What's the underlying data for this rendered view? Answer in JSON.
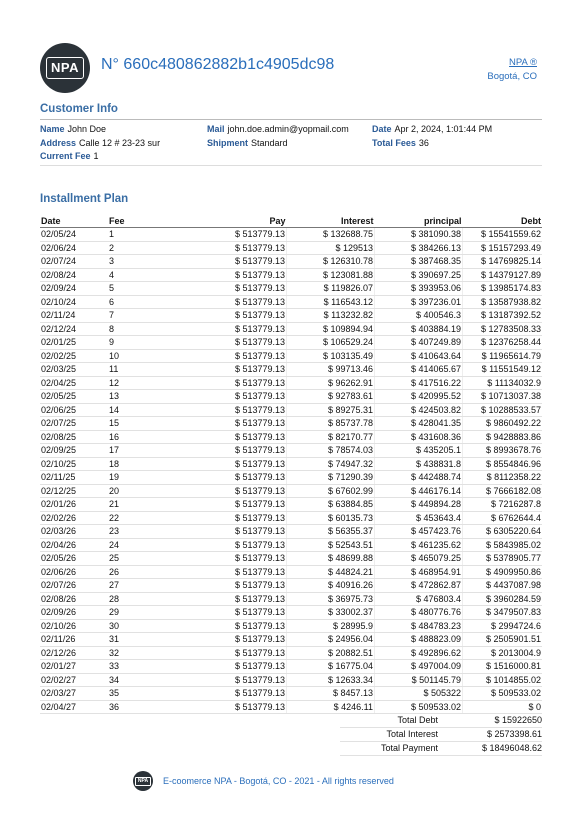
{
  "header": {
    "logo_text": "NPA",
    "order_number": "N° 660c480862882b1c4905dc98",
    "company_link": "NPA ®",
    "company_city": "Bogotá, CO"
  },
  "customer_info": {
    "title": "Customer Info",
    "name_label": "Name",
    "name": "John Doe",
    "address_label": "Address",
    "address": "Calle 12 # 23-23 sur",
    "current_fee_label": "Current Fee",
    "current_fee": "1",
    "mail_label": "Mail",
    "mail": "john.doe.admin@yopmail.com",
    "shipment_label": "Shipment",
    "shipment": "Standard",
    "date_label": "Date",
    "date": "Apr 2, 2024, 1:01:44 PM",
    "total_fees_label": "Total Fees",
    "total_fees": "36"
  },
  "installment_plan": {
    "title": "Installment Plan",
    "columns": [
      "Date",
      "Fee",
      "Pay",
      "Interest",
      "principal",
      "Debt"
    ],
    "rows": [
      [
        "02/05/24",
        "1",
        "$ 513779.13",
        "$ 132688.75",
        "$ 381090.38",
        "$ 15541559.62"
      ],
      [
        "02/06/24",
        "2",
        "$ 513779.13",
        "$ 129513",
        "$ 384266.13",
        "$ 15157293.49"
      ],
      [
        "02/07/24",
        "3",
        "$ 513779.13",
        "$ 126310.78",
        "$ 387468.35",
        "$ 14769825.14"
      ],
      [
        "02/08/24",
        "4",
        "$ 513779.13",
        "$ 123081.88",
        "$ 390697.25",
        "$ 14379127.89"
      ],
      [
        "02/09/24",
        "5",
        "$ 513779.13",
        "$ 119826.07",
        "$ 393953.06",
        "$ 13985174.83"
      ],
      [
        "02/10/24",
        "6",
        "$ 513779.13",
        "$ 116543.12",
        "$ 397236.01",
        "$ 13587938.82"
      ],
      [
        "02/11/24",
        "7",
        "$ 513779.13",
        "$ 113232.82",
        "$ 400546.3",
        "$ 13187392.52"
      ],
      [
        "02/12/24",
        "8",
        "$ 513779.13",
        "$ 109894.94",
        "$ 403884.19",
        "$ 12783508.33"
      ],
      [
        "02/01/25",
        "9",
        "$ 513779.13",
        "$ 106529.24",
        "$ 407249.89",
        "$ 12376258.44"
      ],
      [
        "02/02/25",
        "10",
        "$ 513779.13",
        "$ 103135.49",
        "$ 410643.64",
        "$ 11965614.79"
      ],
      [
        "02/03/25",
        "11",
        "$ 513779.13",
        "$ 99713.46",
        "$ 414065.67",
        "$ 11551549.12"
      ],
      [
        "02/04/25",
        "12",
        "$ 513779.13",
        "$ 96262.91",
        "$ 417516.22",
        "$ 11134032.9"
      ],
      [
        "02/05/25",
        "13",
        "$ 513779.13",
        "$ 92783.61",
        "$ 420995.52",
        "$ 10713037.38"
      ],
      [
        "02/06/25",
        "14",
        "$ 513779.13",
        "$ 89275.31",
        "$ 424503.82",
        "$ 10288533.57"
      ],
      [
        "02/07/25",
        "15",
        "$ 513779.13",
        "$ 85737.78",
        "$ 428041.35",
        "$ 9860492.22"
      ],
      [
        "02/08/25",
        "16",
        "$ 513779.13",
        "$ 82170.77",
        "$ 431608.36",
        "$ 9428883.86"
      ],
      [
        "02/09/25",
        "17",
        "$ 513779.13",
        "$ 78574.03",
        "$ 435205.1",
        "$ 8993678.76"
      ],
      [
        "02/10/25",
        "18",
        "$ 513779.13",
        "$ 74947.32",
        "$ 438831.8",
        "$ 8554846.96"
      ],
      [
        "02/11/25",
        "19",
        "$ 513779.13",
        "$ 71290.39",
        "$ 442488.74",
        "$ 8112358.22"
      ],
      [
        "02/12/25",
        "20",
        "$ 513779.13",
        "$ 67602.99",
        "$ 446176.14",
        "$ 7666182.08"
      ],
      [
        "02/01/26",
        "21",
        "$ 513779.13",
        "$ 63884.85",
        "$ 449894.28",
        "$ 7216287.8"
      ],
      [
        "02/02/26",
        "22",
        "$ 513779.13",
        "$ 60135.73",
        "$ 453643.4",
        "$ 6762644.4"
      ],
      [
        "02/03/26",
        "23",
        "$ 513779.13",
        "$ 56355.37",
        "$ 457423.76",
        "$ 6305220.64"
      ],
      [
        "02/04/26",
        "24",
        "$ 513779.13",
        "$ 52543.51",
        "$ 461235.62",
        "$ 5843985.02"
      ],
      [
        "02/05/26",
        "25",
        "$ 513779.13",
        "$ 48699.88",
        "$ 465079.25",
        "$ 5378905.77"
      ],
      [
        "02/06/26",
        "26",
        "$ 513779.13",
        "$ 44824.21",
        "$ 468954.91",
        "$ 4909950.86"
      ],
      [
        "02/07/26",
        "27",
        "$ 513779.13",
        "$ 40916.26",
        "$ 472862.87",
        "$ 4437087.98"
      ],
      [
        "02/08/26",
        "28",
        "$ 513779.13",
        "$ 36975.73",
        "$ 476803.4",
        "$ 3960284.59"
      ],
      [
        "02/09/26",
        "29",
        "$ 513779.13",
        "$ 33002.37",
        "$ 480776.76",
        "$ 3479507.83"
      ],
      [
        "02/10/26",
        "30",
        "$ 513779.13",
        "$ 28995.9",
        "$ 484783.23",
        "$ 2994724.6"
      ],
      [
        "02/11/26",
        "31",
        "$ 513779.13",
        "$ 24956.04",
        "$ 488823.09",
        "$ 2505901.51"
      ],
      [
        "02/12/26",
        "32",
        "$ 513779.13",
        "$ 20882.51",
        "$ 492896.62",
        "$ 2013004.9"
      ],
      [
        "02/01/27",
        "33",
        "$ 513779.13",
        "$ 16775.04",
        "$ 497004.09",
        "$ 1516000.81"
      ],
      [
        "02/02/27",
        "34",
        "$ 513779.13",
        "$ 12633.34",
        "$ 501145.79",
        "$ 1014855.02"
      ],
      [
        "02/03/27",
        "35",
        "$ 513779.13",
        "$ 8457.13",
        "$ 505322",
        "$ 509533.02"
      ],
      [
        "02/04/27",
        "36",
        "$ 513779.13",
        "$ 4246.11",
        "$ 509533.02",
        "$ 0"
      ]
    ]
  },
  "totals": {
    "total_debt_label": "Total Debt",
    "total_debt": "$ 15922650",
    "total_interest_label": "Total Interest",
    "total_interest": "$ 2573398.61",
    "total_payment_label": "Total Payment",
    "total_payment": "$ 18496048.62"
  },
  "footer": {
    "logo_text": "NPA",
    "text": "E-coomerce NPA - Bogotá, CO - 2021 - All rights reserved"
  }
}
